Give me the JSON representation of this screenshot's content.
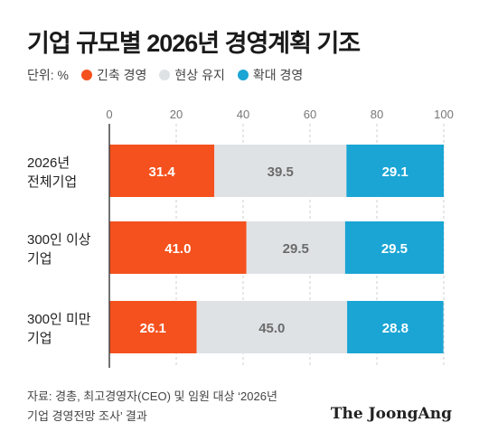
{
  "header": {
    "title": "기업 규모별 2026년 경영계획 기조"
  },
  "legend": {
    "unit": "단위: %",
    "items": [
      {
        "label": "긴축 경영",
        "color": "#f4511e"
      },
      {
        "label": "현상 유지",
        "color": "#dfe2e5"
      },
      {
        "label": "확대 경영",
        "color": "#1aa5d4"
      }
    ]
  },
  "chart_data": {
    "type": "bar",
    "orientation": "horizontal",
    "stacked": true,
    "xlim": [
      0,
      100
    ],
    "x_ticks": [
      "0",
      "20",
      "40",
      "60",
      "80",
      "100"
    ],
    "categories": [
      [
        "2026년",
        "전체기업"
      ],
      [
        "300인 이상",
        "기업"
      ],
      [
        "300인 미만",
        "기업"
      ]
    ],
    "series": [
      {
        "name": "긴축 경영",
        "color": "#f4511e",
        "label_color": "#ffffff",
        "values": [
          31.4,
          41.0,
          26.1
        ],
        "labels": [
          "31.4",
          "41.0",
          "26.1"
        ]
      },
      {
        "name": "현상 유지",
        "color": "#dfe2e5",
        "label_color": "#6b6b6b",
        "values": [
          39.5,
          29.5,
          45.0
        ],
        "labels": [
          "39.5",
          "29.5",
          "45.0"
        ]
      },
      {
        "name": "확대 경영",
        "color": "#1aa5d4",
        "label_color": "#ffffff",
        "values": [
          29.1,
          29.5,
          28.8
        ],
        "labels": [
          "29.1",
          "29.5",
          "28.8"
        ]
      }
    ],
    "grid": true,
    "legend_position": "top-left"
  },
  "footer": {
    "source_line1": "자료: 경총, 최고경영자(CEO) 및 임원 대상 ‘2026년",
    "source_line2": "기업 경영전망 조사’ 결과",
    "brand": "The JoongAng"
  }
}
